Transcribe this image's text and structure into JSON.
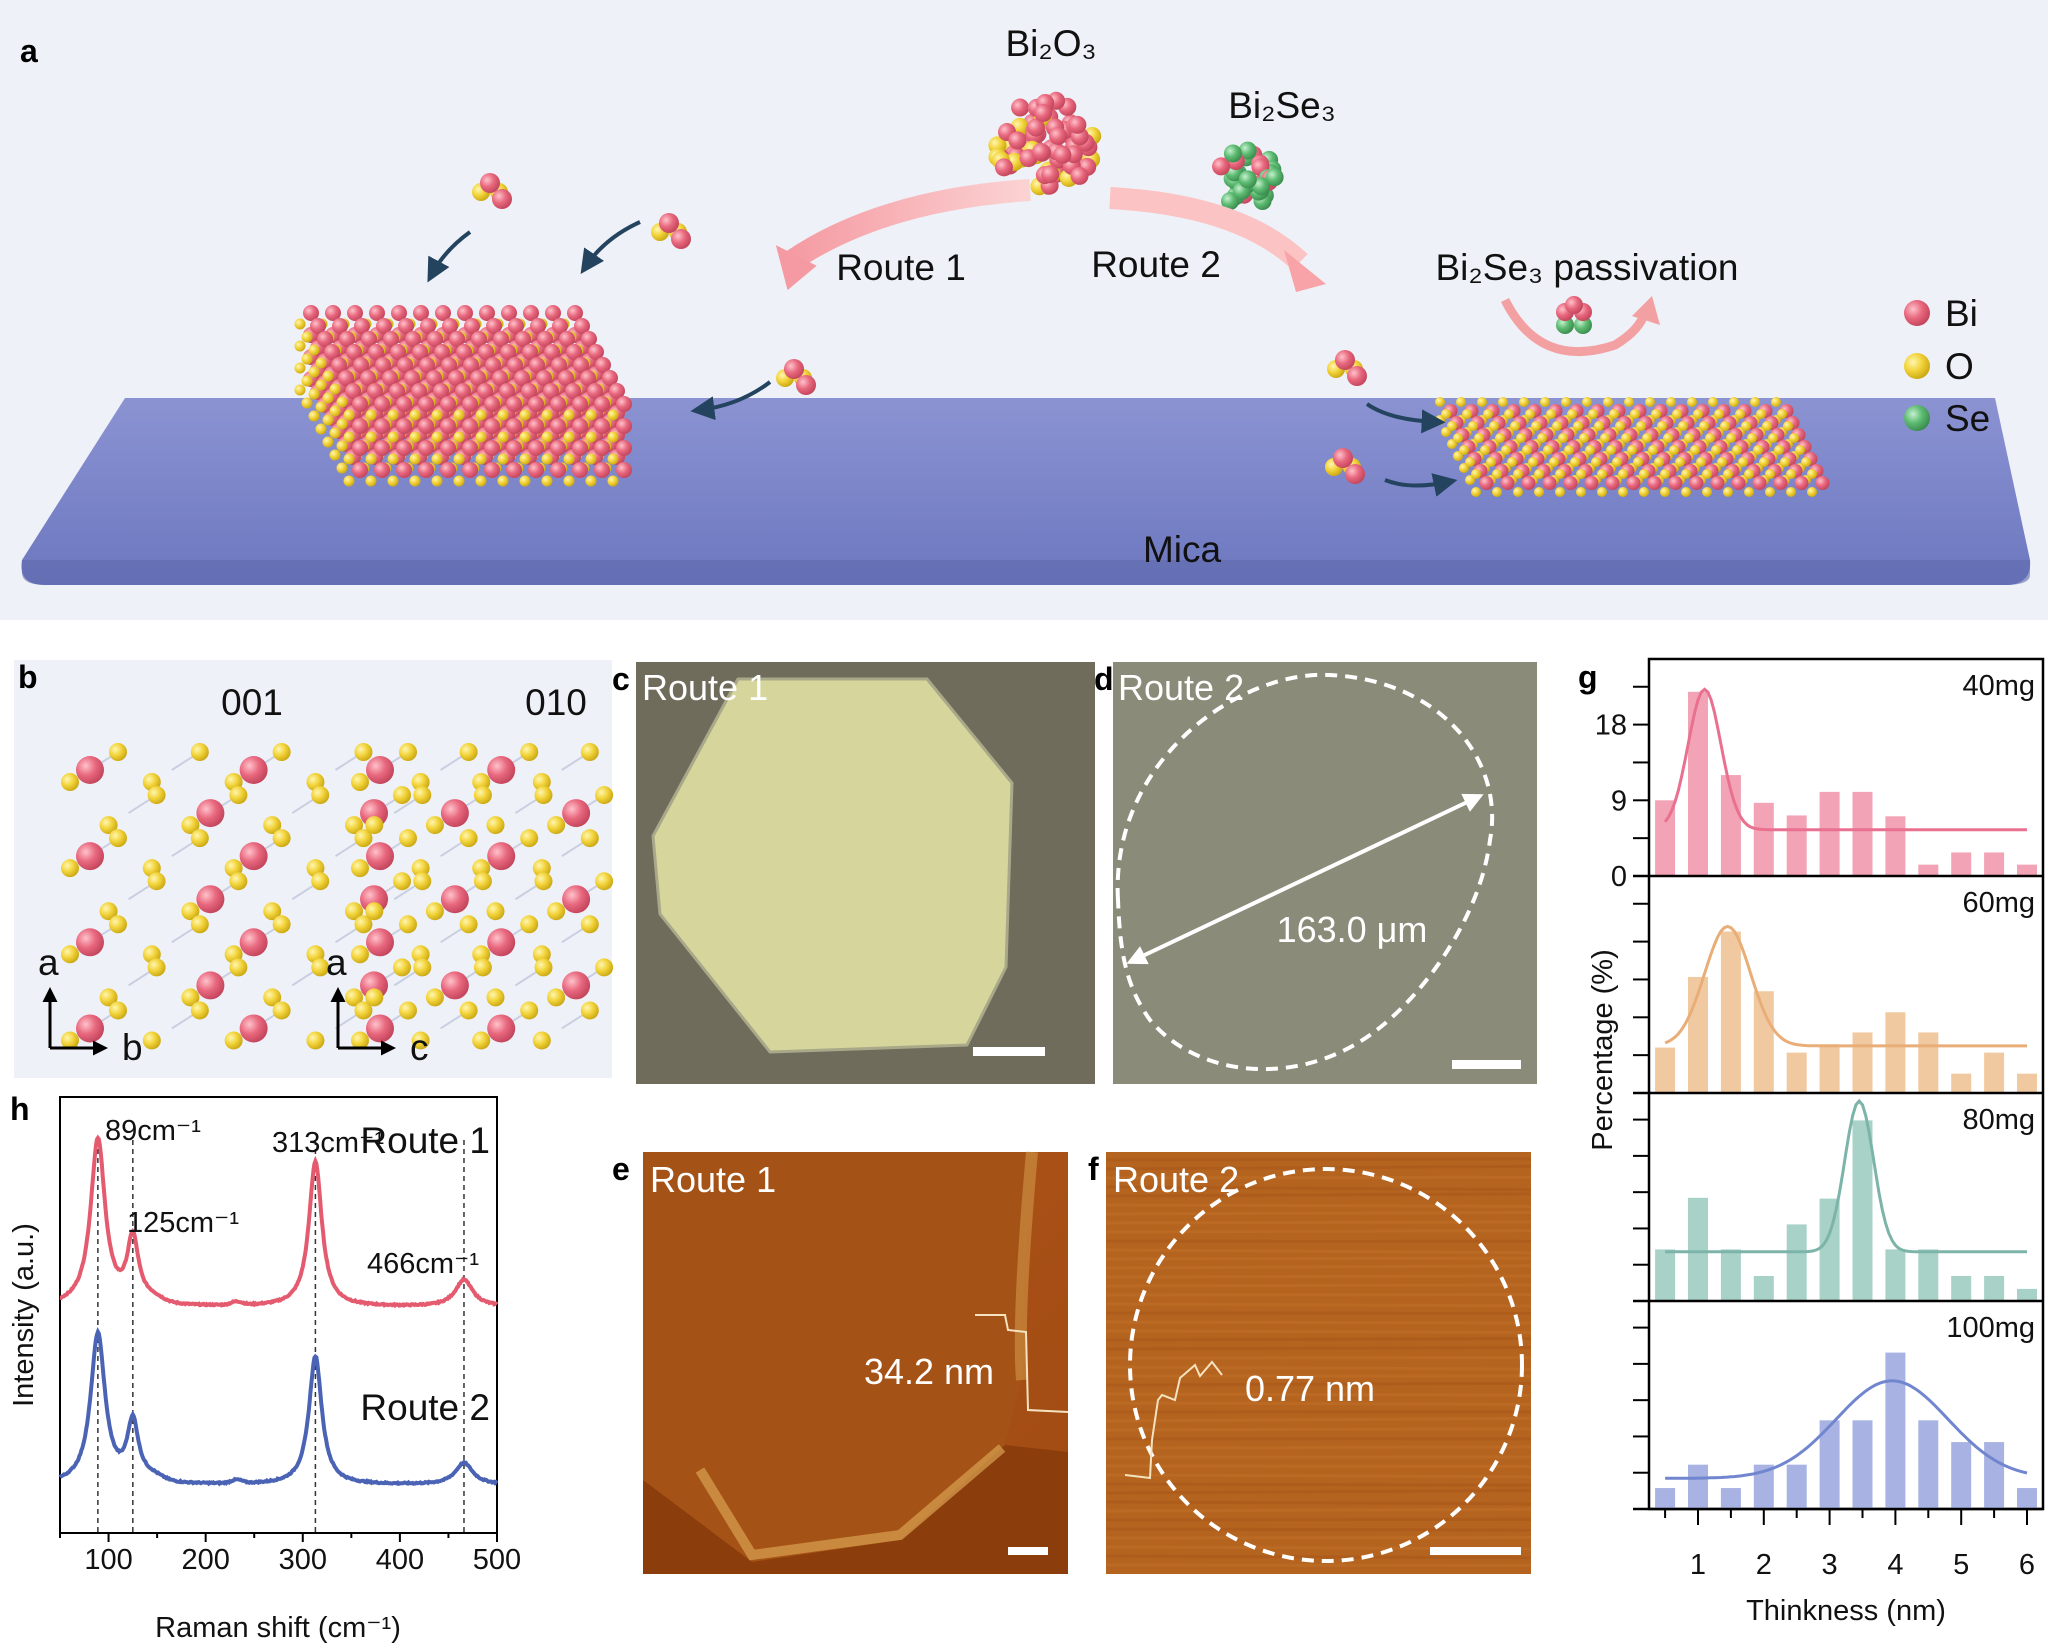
{
  "panel_labels": {
    "a": "a",
    "b": "b",
    "c": "c",
    "d": "d",
    "e": "e",
    "f": "f",
    "g": "g",
    "h": "h"
  },
  "panel_a": {
    "precursor_1": "Bi₂O₃",
    "precursor_2": "Bi₂Se₃",
    "route_1": "Route 1",
    "route_2": "Route 2",
    "passivation": "Bi₂Se₃ passivation",
    "substrate": "Mica",
    "legend": [
      {
        "label": "Bi",
        "color": "#e8687e"
      },
      {
        "label": "O",
        "color": "#f2d33a"
      },
      {
        "label": "Se",
        "color": "#5dbb72"
      }
    ],
    "substrate_color": "#7b85c8",
    "background_color": "#eef1f7"
  },
  "panel_b": {
    "view_1": "001",
    "view_2": "010",
    "axes_1": {
      "up": "a",
      "right": "b"
    },
    "axes_2": {
      "up": "a",
      "right": "c"
    }
  },
  "panel_c": {
    "title": "Route 1"
  },
  "panel_d": {
    "title": "Route 2",
    "measurement": "163.0 μm"
  },
  "panel_e": {
    "title": "Route 1",
    "measurement": "34.2 nm"
  },
  "panel_f": {
    "title": "Route 2",
    "measurement": "0.77 nm"
  },
  "chart_data": [
    {
      "id": "h",
      "type": "line",
      "xlabel": "Raman shift (cm⁻¹)",
      "ylabel": "Intensity (a.u.)",
      "xlim": [
        50,
        500
      ],
      "xticks": [
        100,
        200,
        300,
        400,
        500
      ],
      "series": [
        {
          "name": "Route 1",
          "color": "#e45a6e",
          "peaks": [
            {
              "x": 89,
              "intensity": 1.0
            },
            {
              "x": 125,
              "intensity": 0.39
            },
            {
              "x": 313,
              "intensity": 0.87
            },
            {
              "x": 466,
              "intensity": 0.16
            }
          ]
        },
        {
          "name": "Route 2",
          "color": "#4a63b5",
          "peaks": [
            {
              "x": 89,
              "intensity": 0.9
            },
            {
              "x": 125,
              "intensity": 0.36
            },
            {
              "x": 313,
              "intensity": 0.77
            },
            {
              "x": 466,
              "intensity": 0.13
            }
          ]
        }
      ],
      "annotations": [
        "89cm⁻¹",
        "125cm⁻¹",
        "313cm⁻¹",
        "466cm⁻¹"
      ],
      "reference_lines_x": [
        89,
        125,
        313,
        466
      ]
    },
    {
      "id": "g",
      "type": "bar",
      "xlabel": "Thinkness (nm)",
      "ylabel": "Percentage (%)",
      "xlim": [
        0.25,
        6.25
      ],
      "xticks": [
        1,
        2,
        3,
        4,
        5,
        6
      ],
      "yticks_labeled": [
        0,
        9,
        18
      ],
      "ylim": [
        0,
        25.8
      ],
      "x": [
        0.5,
        1,
        1.5,
        2,
        2.5,
        3,
        3.5,
        4,
        4.5,
        5,
        5.5,
        6
      ],
      "series": [
        {
          "name": "40mg",
          "color": "#f2a3b6",
          "line_color": "#e9718f",
          "values": [
            9,
            21.9,
            12,
            8.7,
            7.2,
            10,
            10,
            7.1,
            1.35,
            2.8,
            2.8,
            1.35
          ],
          "fit": {
            "baseline": 5.5,
            "amplitude": 16.7,
            "center": 1.1,
            "sigma": 0.25
          }
        },
        {
          "name": "60mg",
          "color": "#f1c9a0",
          "line_color": "#e9ae78",
          "values": [
            5.4,
            13.8,
            19.2,
            12.1,
            4.8,
            5.8,
            7.2,
            9.6,
            7.2,
            2.3,
            4.8,
            2.3
          ],
          "fit": {
            "baseline": 5.6,
            "amplitude": 14.2,
            "center": 1.45,
            "sigma": 0.35
          }
        },
        {
          "name": "80mg",
          "color": "#a8d1c8",
          "line_color": "#7db4a9",
          "values": [
            6.4,
            12.8,
            6.4,
            3.1,
            9.5,
            12.7,
            22.4,
            6.4,
            6.4,
            3.1,
            3.1,
            1.5
          ],
          "fit": {
            "baseline": 6.1,
            "amplitude": 18.7,
            "center": 3.45,
            "sigma": 0.22
          }
        },
        {
          "name": "100mg",
          "color": "#a8b3e4",
          "line_color": "#7186cf",
          "values": [
            2.6,
            5.5,
            2.6,
            5.5,
            5.5,
            11,
            11,
            19.4,
            11,
            8.3,
            8.3,
            2.6
          ],
          "fit": {
            "baseline": 3.8,
            "amplitude": 12.1,
            "center": 3.95,
            "sigma": 0.85
          }
        }
      ]
    }
  ]
}
